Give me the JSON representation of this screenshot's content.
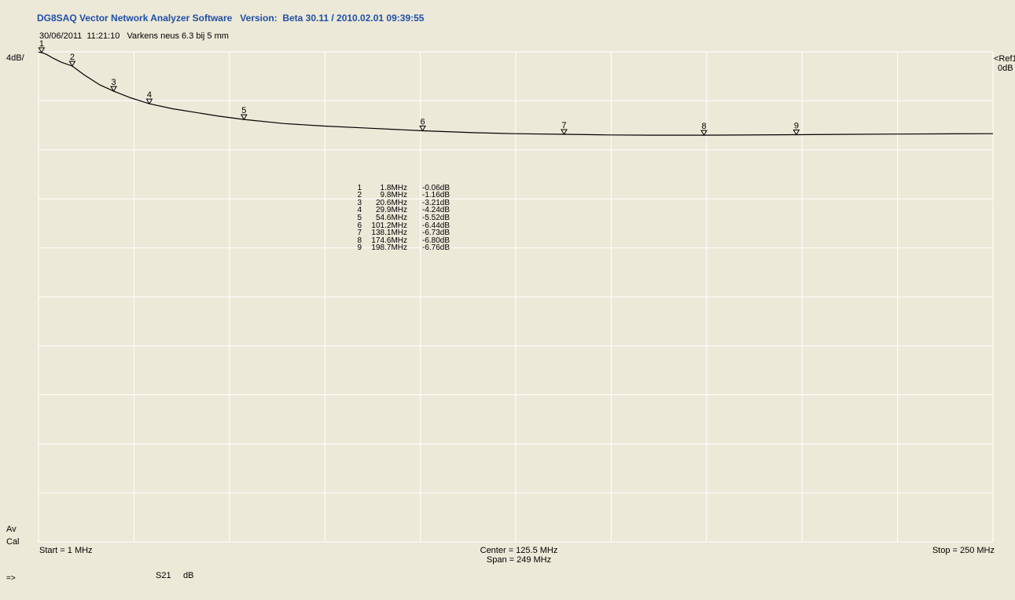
{
  "header": {
    "title": "DG8SAQ Vector Network Analyzer Software   Version:  Beta 30.11 / 2010.02.01 09:39:55",
    "subtitle": "30/06/2011  11:21:10   Varkens neus 6.3 bij 5 mm"
  },
  "left_labels": {
    "scale": "4dB/",
    "av": "Av",
    "cal": "Cal",
    "arrow": "=>"
  },
  "right_labels": {
    "ref": "<Ref1",
    "ref_value": "0dB"
  },
  "footer": {
    "start": "Start = 1 MHz",
    "center": "Center = 125.5 MHz",
    "span": "Span = 249 MHz",
    "stop": "Stop = 250 MHz",
    "parameter": "S21",
    "unit": "dB"
  },
  "markers": [
    {
      "id": "1",
      "freq": "1.8MHz",
      "value": "-0.06dB"
    },
    {
      "id": "2",
      "freq": "9.8MHz",
      "value": "-1.16dB"
    },
    {
      "id": "3",
      "freq": "20.6MHz",
      "value": "-3.21dB"
    },
    {
      "id": "4",
      "freq": "29.9MHz",
      "value": "-4.24dB"
    },
    {
      "id": "5",
      "freq": "54.6MHz",
      "value": "-5.52dB"
    },
    {
      "id": "6",
      "freq": "101.2MHz",
      "value": "-6.44dB"
    },
    {
      "id": "7",
      "freq": "138.1MHz",
      "value": "-6.73dB"
    },
    {
      "id": "8",
      "freq": "174.6MHz",
      "value": "-6.80dB"
    },
    {
      "id": "9",
      "freq": "198.7MHz",
      "value": "-6.76dB"
    }
  ],
  "chart_data": {
    "type": "line",
    "title": "",
    "xlabel": "",
    "ylabel": "",
    "xlim": [
      1,
      250
    ],
    "ylim": [
      -40,
      0
    ],
    "x_divisions": 10,
    "y_divisions": 10,
    "grid": true,
    "colors": {
      "trace": "#000000",
      "grid": "#FFFFFF",
      "background": "#ECE9D8",
      "title": "#1F4FA6"
    },
    "series": [
      {
        "x": [
          1,
          1.8,
          3,
          5,
          7,
          9.8,
          13,
          17,
          20.6,
          25,
          29.9,
          36,
          42,
          48,
          54.6,
          65,
          75,
          85,
          101.2,
          115,
          125,
          138.1,
          150,
          160,
          174.6,
          185,
          198.7,
          210,
          225,
          240,
          250
        ],
        "y": [
          -0.02,
          -0.06,
          -0.2,
          -0.55,
          -0.85,
          -1.16,
          -1.9,
          -2.7,
          -3.21,
          -3.75,
          -4.24,
          -4.65,
          -4.95,
          -5.25,
          -5.52,
          -5.85,
          -6.05,
          -6.2,
          -6.44,
          -6.6,
          -6.68,
          -6.73,
          -6.78,
          -6.8,
          -6.8,
          -6.79,
          -6.76,
          -6.74,
          -6.71,
          -6.69,
          -6.68
        ]
      }
    ],
    "markers": [
      {
        "label": "1",
        "x": 1.8,
        "y": -0.06
      },
      {
        "label": "2",
        "x": 9.8,
        "y": -1.16
      },
      {
        "label": "3",
        "x": 20.6,
        "y": -3.21
      },
      {
        "label": "4",
        "x": 29.9,
        "y": -4.24
      },
      {
        "label": "5",
        "x": 54.6,
        "y": -5.52
      },
      {
        "label": "6",
        "x": 101.2,
        "y": -6.44
      },
      {
        "label": "7",
        "x": 138.1,
        "y": -6.73
      },
      {
        "label": "8",
        "x": 174.6,
        "y": -6.8
      },
      {
        "label": "9",
        "x": 198.7,
        "y": -6.76
      }
    ]
  }
}
